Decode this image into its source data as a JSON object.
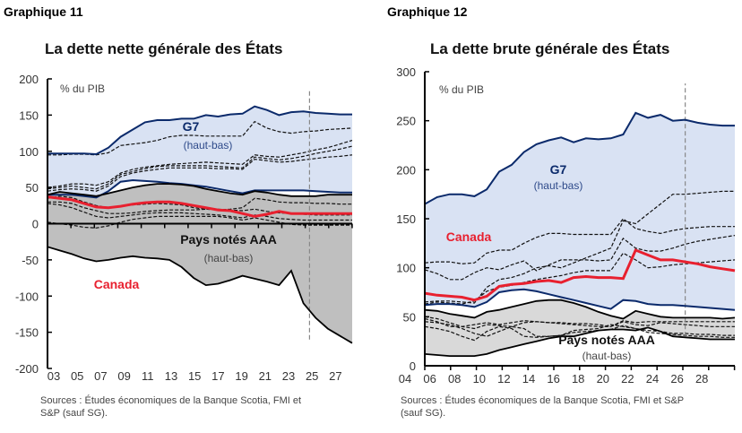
{
  "chart_data": [
    {
      "type": "area",
      "figure_label": "Graphique 11",
      "title": "La dette nette générale des États",
      "ylabel": "% du PIB",
      "ylim": [
        -200,
        200
      ],
      "yticks": [
        200,
        150,
        100,
        50,
        0,
        -50,
        -100,
        -150,
        -200
      ],
      "xticks": [
        "03",
        "05",
        "07",
        "09",
        "11",
        "13",
        "15",
        "17",
        "19",
        "21",
        "23",
        "25",
        "27"
      ],
      "x": [
        2003,
        2004,
        2005,
        2006,
        2007,
        2008,
        2009,
        2010,
        2011,
        2012,
        2013,
        2014,
        2015,
        2016,
        2017,
        2018,
        2019,
        2020,
        2021,
        2022,
        2023,
        2024,
        2025,
        2026,
        2027,
        2028
      ],
      "forecast_start": 2024.5,
      "bands": [
        {
          "name": "G7",
          "sub": "(haut-bas)",
          "color": "#d9e2f3",
          "line": "#0b2a6b",
          "upper": [
            97,
            97,
            97,
            97,
            96,
            105,
            120,
            130,
            140,
            143,
            143,
            145,
            145,
            150,
            148,
            151,
            152,
            162,
            157,
            150,
            154,
            155,
            153,
            152,
            151,
            151
          ],
          "lower": [
            40,
            40,
            40,
            38,
            36,
            45,
            58,
            60,
            59,
            58,
            56,
            55,
            53,
            51,
            48,
            45,
            42,
            46,
            46,
            46,
            46,
            46,
            45,
            44,
            43,
            43
          ],
          "members": [
            [
              95,
              95,
              96,
              96,
              95,
              98,
              108,
              110,
              112,
              115,
              120,
              122,
              122,
              121,
              121,
              121,
              121,
              141,
              132,
              127,
              125,
              127,
              128,
              130,
              131,
              132
            ],
            [
              50,
              52,
              55,
              55,
              53,
              58,
              70,
              75,
              78,
              80,
              82,
              83,
              84,
              85,
              84,
              83,
              82,
              95,
              93,
              92,
              95,
              98,
              102,
              105,
              110,
              115
            ],
            [
              48,
              50,
              52,
              50,
              48,
              55,
              68,
              72,
              76,
              79,
              80,
              80,
              80,
              80,
              79,
              78,
              77,
              92,
              90,
              88,
              90,
              93,
              97,
              100,
              103,
              107
            ],
            [
              45,
              47,
              48,
              47,
              45,
              52,
              65,
              70,
              73,
              75,
              77,
              77,
              77,
              77,
              76,
              76,
              75,
              89,
              87,
              85,
              86,
              88,
              90,
              92,
              93,
              95
            ]
          ]
        },
        {
          "name": "Pays notés AAA",
          "sub": "(haut-bas)",
          "color": "#bfbfbf",
          "line": "#000000",
          "upper": [
            40,
            44,
            42,
            40,
            38,
            42,
            46,
            50,
            53,
            55,
            55,
            54,
            52,
            48,
            45,
            42,
            40,
            45,
            43,
            40,
            38,
            38,
            38,
            40,
            40,
            40
          ],
          "lower": [
            -32,
            -37,
            -42,
            -48,
            -52,
            -50,
            -47,
            -45,
            -47,
            -48,
            -50,
            -60,
            -75,
            -85,
            -83,
            -78,
            -72,
            -76,
            -80,
            -85,
            -65,
            -110,
            -130,
            -145,
            -155,
            -165
          ],
          "members": [
            [
              35,
              38,
              36,
              30,
              25,
              22,
              24,
              26,
              27,
              28,
              27,
              26,
              22,
              20,
              19,
              20,
              22,
              35,
              33,
              30,
              29,
              29,
              28,
              28,
              27,
              27
            ],
            [
              30,
              30,
              28,
              22,
              18,
              14,
              14,
              15,
              17,
              18,
              19,
              19,
              19,
              20,
              20,
              19,
              18,
              20,
              17,
              15,
              14,
              13,
              12,
              12,
              12,
              12
            ],
            [
              28,
              26,
              22,
              16,
              10,
              8,
              10,
              12,
              14,
              15,
              15,
              15,
              14,
              13,
              12,
              10,
              8,
              12,
              10,
              7,
              6,
              5,
              5,
              5,
              5,
              5
            ],
            [
              2,
              0,
              -2,
              -5,
              -6,
              -3,
              2,
              6,
              8,
              10,
              10,
              10,
              10,
              10,
              10,
              8,
              5,
              8,
              5,
              2,
              -1,
              -2,
              -2,
              -2,
              -2,
              -2
            ]
          ]
        }
      ],
      "series": [
        {
          "name": "Canada",
          "color": "#e8202f",
          "values": [
            37,
            35,
            33,
            28,
            23,
            22,
            24,
            27,
            29,
            30,
            30,
            28,
            25,
            22,
            19,
            18,
            14,
            10,
            13,
            17,
            14,
            14,
            14,
            14,
            14,
            14
          ]
        }
      ],
      "sources": [
        "Sources : Études économiques de la Banque Scotia, FMI et",
        "S&P (sauf SG)."
      ]
    },
    {
      "type": "area",
      "figure_label": "Graphique 12",
      "title": "La dette brute générale des États",
      "ylabel": "% du PIB",
      "ylim": [
        0,
        300
      ],
      "yticks": [
        300,
        250,
        200,
        150,
        100,
        50,
        0
      ],
      "xticks": [
        "04",
        "06",
        "08",
        "10",
        "12",
        "14",
        "16",
        "18",
        "20",
        "22",
        "24",
        "26",
        "28"
      ],
      "x": [
        2003,
        2004,
        2005,
        2006,
        2007,
        2008,
        2009,
        2010,
        2011,
        2012,
        2013,
        2014,
        2015,
        2016,
        2017,
        2018,
        2019,
        2020,
        2021,
        2022,
        2023,
        2024,
        2025,
        2026,
        2027,
        2028
      ],
      "forecast_start": 2024,
      "bands": [
        {
          "name": "G7",
          "sub": "(haut-bas)",
          "color": "#d9e2f3",
          "line": "#0b2a6b",
          "upper": [
            165,
            172,
            175,
            175,
            173,
            180,
            198,
            205,
            218,
            226,
            230,
            233,
            228,
            232,
            231,
            232,
            236,
            258,
            253,
            256,
            250,
            251,
            248,
            246,
            245,
            245
          ],
          "lower": [
            62,
            63,
            63,
            62,
            60,
            65,
            75,
            77,
            78,
            76,
            73,
            70,
            67,
            64,
            61,
            58,
            67,
            66,
            63,
            62,
            62,
            61,
            60,
            59,
            58,
            57
          ],
          "members": [
            [
              105,
              106,
              106,
              104,
              105,
              115,
              118,
              118,
              125,
              131,
              135,
              135,
              134,
              134,
              134,
              134,
              150,
              140,
              137,
              135,
              138,
              140,
              141,
              142,
              142,
              142
            ],
            [
              65,
              66,
              66,
              65,
              64,
              80,
              88,
              90,
              94,
              100,
              102,
              100,
              105,
              110,
              115,
              120,
              148,
              145,
              155,
              165,
              175,
              175,
              176,
              177,
              178,
              178
            ],
            [
              98,
              94,
              88,
              88,
              95,
              100,
              98,
              103,
              107,
              97,
              103,
              108,
              108,
              108,
              107,
              108,
              130,
              120,
              117,
              117,
              120,
              124,
              127,
              129,
              131,
              133
            ],
            [
              63,
              65,
              64,
              63,
              66,
              76,
              80,
              82,
              85,
              88,
              90,
              92,
              95,
              97,
              97,
              97,
              115,
              108,
              100,
              101,
              103,
              104,
              105,
              106,
              107,
              108
            ]
          ]
        },
        {
          "name": "Pays notés AAA",
          "sub": "(haut-bas)",
          "color": "#d9d9d9",
          "line": "#000000",
          "upper": [
            57,
            56,
            53,
            51,
            49,
            55,
            57,
            60,
            63,
            66,
            67,
            67,
            64,
            60,
            55,
            51,
            48,
            56,
            53,
            50,
            49,
            49,
            49,
            49,
            48,
            49
          ],
          "lower": [
            12,
            11,
            10,
            10,
            10,
            12,
            16,
            19,
            22,
            25,
            28,
            30,
            30,
            33,
            36,
            37,
            37,
            36,
            39,
            35,
            30,
            29,
            28,
            27,
            27,
            27
          ],
          "members": [
            [
              50,
              48,
              44,
              40,
              38,
              42,
              41,
              40,
              44,
              45,
              44,
              43,
              42,
              41,
              40,
              40,
              45,
              42,
              41,
              44,
              43,
              42,
              41,
              40,
              40,
              40
            ],
            [
              45,
              44,
              42,
              38,
              33,
              30,
              35,
              40,
              38,
              30,
              30,
              31,
              36,
              37,
              38,
              42,
              40,
              38,
              36,
              35,
              33,
              33,
              32,
              32,
              31,
              31
            ],
            [
              40,
              38,
              35,
              30,
              26,
              35,
              40,
              38,
              30,
              29,
              30,
              31,
              34,
              35,
              36,
              37,
              41,
              38,
              34,
              33,
              32,
              31,
              30,
              30,
              29,
              29
            ],
            [
              48,
              45,
              40,
              40,
              42,
              44,
              42,
              44,
              46,
              45,
              44,
              44,
              43,
              43,
              42,
              40,
              46,
              44,
              45,
              45,
              45,
              45,
              45,
              45,
              45,
              45
            ]
          ]
        }
      ],
      "series": [
        {
          "name": "Canada",
          "color": "#e8202f",
          "values": [
            74,
            72,
            71,
            70,
            67,
            71,
            81,
            83,
            84,
            86,
            87,
            85,
            90,
            91,
            90,
            90,
            89,
            118,
            113,
            108,
            108,
            106,
            104,
            101,
            99,
            97
          ]
        }
      ],
      "sources": [
        "Sources : Études économiques de la Banque Scotia, FMI et S&P",
        "(sauf SG)."
      ]
    }
  ]
}
